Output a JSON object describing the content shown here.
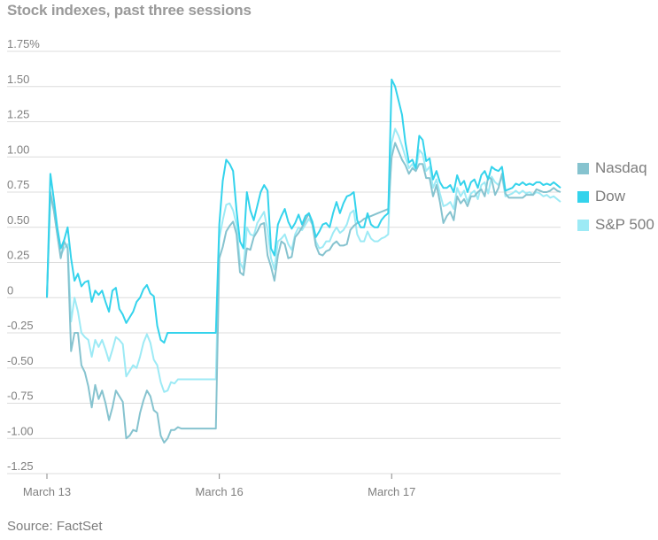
{
  "chart_data": {
    "type": "line",
    "title": "Stock indexes, past three sessions",
    "source": "Source: FactSet",
    "ylim": [
      -1.25,
      1.75
    ],
    "yticks": [
      {
        "value": 1.75,
        "label": "1.75%"
      },
      {
        "value": 1.5,
        "label": "1.50"
      },
      {
        "value": 1.25,
        "label": "1.25"
      },
      {
        "value": 1.0,
        "label": "1.00"
      },
      {
        "value": 0.75,
        "label": "0.75"
      },
      {
        "value": 0.5,
        "label": "0.50"
      },
      {
        "value": 0.25,
        "label": "0.25"
      },
      {
        "value": 0.0,
        "label": "0"
      },
      {
        "value": -0.25,
        "label": "-0.25"
      },
      {
        "value": -0.5,
        "label": "-0.50"
      },
      {
        "value": -0.75,
        "label": "-0.75"
      },
      {
        "value": -1.0,
        "label": "-1.00"
      },
      {
        "value": -1.25,
        "label": "-1.25"
      }
    ],
    "xlim": [
      0,
      149
    ],
    "xticks": [
      {
        "index": 0,
        "label": "March 13"
      },
      {
        "index": 50,
        "label": "March 16"
      },
      {
        "index": 100,
        "label": "March 17"
      }
    ],
    "grid": true,
    "legend_position": "right",
    "series": [
      {
        "name": "Nasdaq",
        "color": "#86c3cf",
        "values": [
          0,
          0.75,
          0.62,
          0.45,
          0.28,
          0.4,
          0.35,
          -0.38,
          -0.25,
          -0.25,
          -0.48,
          -0.53,
          -0.63,
          -0.78,
          -0.62,
          -0.72,
          -0.66,
          -0.75,
          -0.87,
          -0.78,
          -0.66,
          -0.7,
          -0.74,
          -1.0,
          -0.98,
          -0.94,
          -0.95,
          -0.82,
          -0.73,
          -0.66,
          -0.7,
          -0.8,
          -0.82,
          -0.98,
          -1.03,
          -1.0,
          -0.94,
          -0.94,
          -0.92,
          -0.93,
          -0.93,
          -0.93,
          -0.93,
          -0.93,
          -0.93,
          -0.93,
          -0.93,
          -0.93,
          -0.93,
          -0.93,
          0.28,
          0.36,
          0.47,
          0.51,
          0.54,
          0.45,
          0.18,
          0.16,
          0.35,
          0.34,
          0.43,
          0.47,
          0.52,
          0.53,
          0.3,
          0.22,
          0.12,
          0.3,
          0.4,
          0.38,
          0.28,
          0.29,
          0.43,
          0.46,
          0.5,
          0.55,
          0.6,
          0.52,
          0.37,
          0.31,
          0.3,
          0.33,
          0.34,
          0.38,
          0.4,
          0.37,
          0.37,
          0.38,
          0.48,
          0.51,
          0.53,
          0.54,
          0.56,
          0.57,
          0.58,
          0.59,
          0.6,
          0.61,
          0.62,
          0.63,
          1.0,
          1.1,
          1.04,
          0.98,
          0.94,
          0.88,
          0.92,
          0.9,
          0.95,
          0.95,
          0.85,
          0.85,
          0.72,
          0.8,
          0.68,
          0.53,
          0.58,
          0.61,
          0.55,
          0.72,
          0.67,
          0.7,
          0.65,
          0.72,
          0.72,
          0.75,
          0.77,
          0.72,
          0.86,
          0.84,
          0.73,
          0.78,
          0.88,
          0.74,
          0.71,
          0.71,
          0.71,
          0.71,
          0.71,
          0.73,
          0.73,
          0.73,
          0.77,
          0.76,
          0.75,
          0.75,
          0.76,
          0.78,
          0.76,
          0.75
        ]
      },
      {
        "name": "Dow",
        "color": "#34d3ec",
        "values": [
          0,
          0.88,
          0.7,
          0.5,
          0.35,
          0.41,
          0.5,
          0.28,
          0.12,
          0.17,
          0.08,
          0.11,
          0.12,
          -0.03,
          0.05,
          0.02,
          0.05,
          -0.03,
          -0.1,
          0.05,
          0.07,
          -0.08,
          -0.12,
          -0.18,
          -0.14,
          -0.1,
          -0.03,
          0.0,
          0.06,
          0.09,
          0.03,
          0.01,
          -0.2,
          -0.3,
          -0.32,
          -0.25,
          -0.25,
          -0.25,
          -0.25,
          -0.25,
          -0.25,
          -0.25,
          -0.25,
          -0.25,
          -0.25,
          -0.25,
          -0.25,
          -0.25,
          -0.25,
          -0.25,
          0.52,
          0.83,
          0.98,
          0.95,
          0.9,
          0.62,
          0.4,
          0.35,
          0.75,
          0.62,
          0.55,
          0.65,
          0.75,
          0.8,
          0.76,
          0.35,
          0.3,
          0.52,
          0.58,
          0.63,
          0.54,
          0.49,
          0.53,
          0.59,
          0.52,
          0.58,
          0.6,
          0.54,
          0.43,
          0.47,
          0.52,
          0.53,
          0.5,
          0.6,
          0.68,
          0.6,
          0.67,
          0.72,
          0.73,
          0.75,
          0.55,
          0.5,
          0.5,
          0.6,
          0.52,
          0.5,
          0.5,
          0.55,
          0.58,
          0.6,
          1.55,
          1.5,
          1.4,
          1.3,
          1.1,
          0.96,
          0.98,
          0.92,
          1.15,
          1.12,
          0.97,
          0.99,
          0.84,
          0.9,
          0.82,
          0.78,
          0.78,
          0.8,
          0.75,
          0.87,
          0.8,
          0.83,
          0.75,
          0.82,
          0.84,
          0.78,
          0.87,
          0.9,
          0.84,
          0.93,
          0.91,
          0.9,
          0.93,
          0.76,
          0.77,
          0.78,
          0.81,
          0.8,
          0.82,
          0.8,
          0.81,
          0.8,
          0.82,
          0.82,
          0.8,
          0.81,
          0.8,
          0.82,
          0.8,
          0.78
        ]
      },
      {
        "name": "S&P 500",
        "color": "#9deaf5",
        "values": [
          0,
          0.72,
          0.62,
          0.45,
          0.3,
          0.35,
          0.38,
          -0.17,
          0.0,
          -0.1,
          -0.25,
          -0.28,
          -0.3,
          -0.42,
          -0.3,
          -0.35,
          -0.3,
          -0.37,
          -0.45,
          -0.37,
          -0.28,
          -0.3,
          -0.33,
          -0.56,
          -0.52,
          -0.48,
          -0.5,
          -0.42,
          -0.32,
          -0.26,
          -0.32,
          -0.44,
          -0.48,
          -0.6,
          -0.67,
          -0.66,
          -0.6,
          -0.61,
          -0.58,
          -0.58,
          -0.58,
          -0.58,
          -0.58,
          -0.58,
          -0.58,
          -0.58,
          -0.58,
          -0.58,
          -0.58,
          -0.58,
          0.42,
          0.55,
          0.66,
          0.67,
          0.62,
          0.52,
          0.25,
          0.2,
          0.5,
          0.45,
          0.44,
          0.53,
          0.57,
          0.61,
          0.48,
          0.28,
          0.2,
          0.4,
          0.42,
          0.45,
          0.38,
          0.34,
          0.45,
          0.5,
          0.48,
          0.52,
          0.56,
          0.52,
          0.4,
          0.35,
          0.36,
          0.4,
          0.4,
          0.46,
          0.5,
          0.46,
          0.48,
          0.52,
          0.6,
          0.62,
          0.45,
          0.4,
          0.4,
          0.47,
          0.42,
          0.4,
          0.4,
          0.42,
          0.43,
          0.45,
          1.1,
          1.2,
          1.15,
          1.08,
          1.0,
          0.92,
          0.95,
          0.9,
          1.05,
          1.02,
          0.9,
          0.93,
          0.78,
          0.84,
          0.74,
          0.65,
          0.66,
          0.68,
          0.63,
          0.78,
          0.72,
          0.76,
          0.68,
          0.74,
          0.76,
          0.7,
          0.8,
          0.82,
          0.74,
          0.86,
          0.82,
          0.8,
          0.86,
          0.72,
          0.73,
          0.74,
          0.76,
          0.74,
          0.76,
          0.74,
          0.75,
          0.73,
          0.75,
          0.74,
          0.72,
          0.73,
          0.71,
          0.72,
          0.7,
          0.68
        ]
      }
    ]
  }
}
